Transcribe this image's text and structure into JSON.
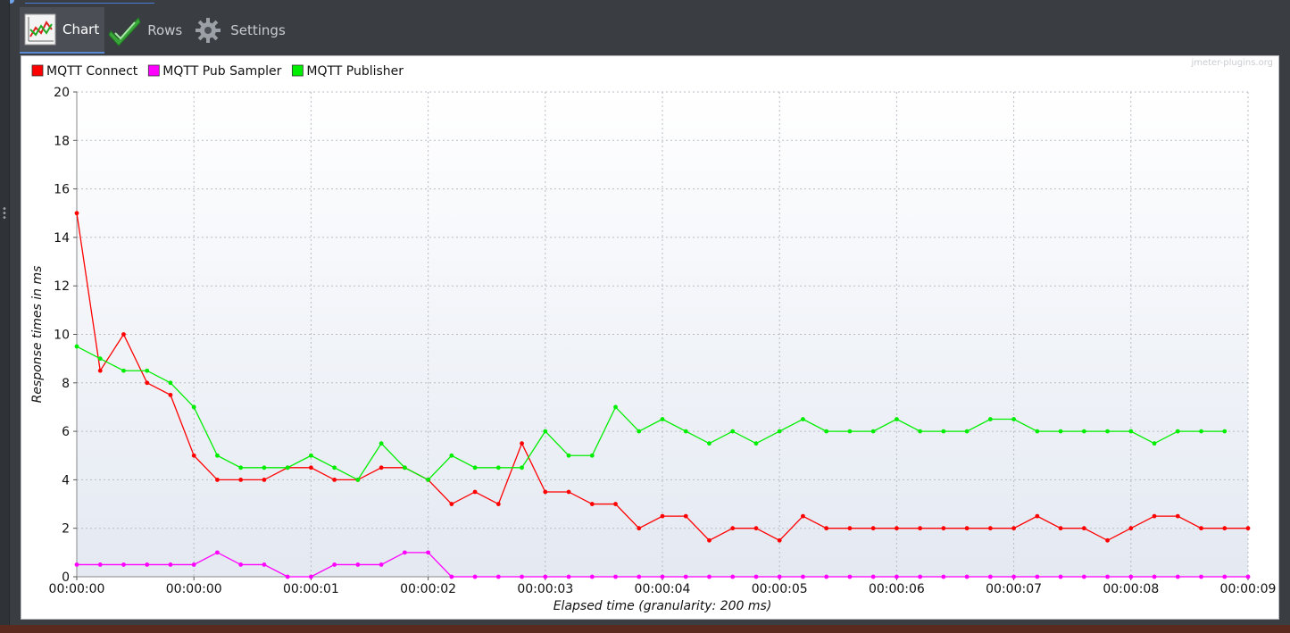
{
  "tabs": [
    {
      "label": "Chart",
      "icon": "line-chart-icon",
      "active": true
    },
    {
      "label": "Rows",
      "icon": "checkmark-icon",
      "active": false
    },
    {
      "label": "Settings",
      "icon": "gear-icon",
      "active": false
    }
  ],
  "watermark": "jmeter-plugins.org",
  "chart_data": {
    "type": "line",
    "xlabel": "Elapsed time (granularity: 200 ms)",
    "ylabel": "Response times in ms",
    "ylim": [
      0,
      20
    ],
    "yticks": [
      0,
      2,
      4,
      6,
      8,
      10,
      12,
      14,
      16,
      18,
      20
    ],
    "xlim": [
      0,
      50
    ],
    "xtick_labels": [
      "00:00:00",
      "00:00:00",
      "00:00:01",
      "00:00:02",
      "00:00:03",
      "00:00:04",
      "00:00:05",
      "00:00:06",
      "00:00:07",
      "00:00:08",
      "00:00:09"
    ],
    "grid": true,
    "legend_position": "top-left",
    "series": [
      {
        "name": "MQTT Connect",
        "color": "#ff0000",
        "values": [
          15,
          8.5,
          10,
          8,
          7.5,
          5,
          4,
          4,
          4,
          4.5,
          4.5,
          4,
          4,
          4.5,
          4.5,
          4,
          3,
          3.5,
          3,
          5.5,
          3.5,
          3.5,
          3,
          3,
          2,
          2.5,
          2.5,
          1.5,
          2,
          2,
          1.5,
          2.5,
          2,
          2,
          2,
          2,
          2,
          2,
          2,
          2,
          2,
          2.5,
          2,
          2,
          1.5,
          2,
          2.5,
          2.5,
          2,
          2,
          2
        ]
      },
      {
        "name": "MQTT Pub Sampler",
        "color": "#ff00ff",
        "values": [
          0.5,
          0.5,
          0.5,
          0.5,
          0.5,
          0.5,
          1,
          0.5,
          0.5,
          0,
          0,
          0.5,
          0.5,
          0.5,
          1,
          1,
          0,
          0,
          0,
          0,
          0,
          0,
          0,
          0,
          0,
          0,
          0,
          0,
          0,
          0,
          0,
          0,
          0,
          0,
          0,
          0,
          0,
          0,
          0,
          0,
          0,
          0,
          0,
          0,
          0,
          0,
          0,
          0,
          0,
          0,
          0
        ]
      },
      {
        "name": "MQTT Publisher",
        "color": "#00ee00",
        "values": [
          9.5,
          9,
          8.5,
          8.5,
          8,
          7,
          5,
          4.5,
          4.5,
          4.5,
          5,
          4.5,
          4,
          5.5,
          4.5,
          4,
          5,
          4.5,
          4.5,
          4.5,
          6,
          5,
          5,
          7,
          6,
          6.5,
          6,
          5.5,
          6,
          5.5,
          6,
          6.5,
          6,
          6,
          6,
          6.5,
          6,
          6,
          6,
          6.5,
          6.5,
          6,
          6,
          6,
          6,
          6,
          5.5,
          6,
          6,
          6
        ]
      }
    ]
  }
}
